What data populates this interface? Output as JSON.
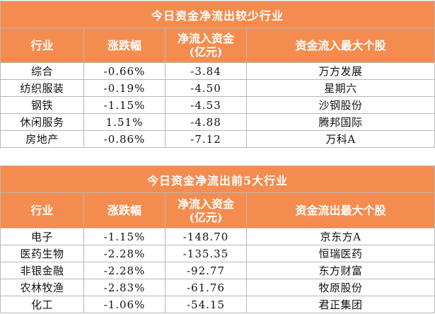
{
  "table_inflow": {
    "title": "今日资金净流出较少行业",
    "headers": {
      "industry": "行业",
      "change": "涨跌幅",
      "net_flow_line1": "净流入资金",
      "net_flow_line2": "(亿元)",
      "top_stock": "资金流入最大个股"
    },
    "rows": [
      {
        "industry": "综合",
        "change": "-0.66%",
        "net_flow": "-3.84",
        "top_stock": "万方发展"
      },
      {
        "industry": "纺织服装",
        "change": "-0.19%",
        "net_flow": "-4.50",
        "top_stock": "星期六"
      },
      {
        "industry": "钢铁",
        "change": "-1.15%",
        "net_flow": "-4.53",
        "top_stock": "沙钢股份"
      },
      {
        "industry": "休闲服务",
        "change": "1.51%",
        "net_flow": "-4.88",
        "top_stock": "腾邦国际"
      },
      {
        "industry": "房地产",
        "change": "-0.86%",
        "net_flow": "-7.12",
        "top_stock": "万科A"
      }
    ]
  },
  "table_outflow": {
    "title": "今日资金净流出前5大行业",
    "headers": {
      "industry": "行业",
      "change": "涨跌幅",
      "net_flow_line1": "净流入资金",
      "net_flow_line2": "(亿元)",
      "top_stock": "资金流出最大个股"
    },
    "rows": [
      {
        "industry": "电子",
        "change": "-1.15%",
        "net_flow": "-148.70",
        "top_stock": "京东方A"
      },
      {
        "industry": "医药生物",
        "change": "-2.28%",
        "net_flow": "-135.35",
        "top_stock": "恒瑞医药"
      },
      {
        "industry": "非银金融",
        "change": "-2.28%",
        "net_flow": "-92.77",
        "top_stock": "东方财富"
      },
      {
        "industry": "农林牧渔",
        "change": "-2.83%",
        "net_flow": "-61.76",
        "top_stock": "牧原股份"
      },
      {
        "industry": "化工",
        "change": "-1.06%",
        "net_flow": "-54.15",
        "top_stock": "君正集团"
      }
    ]
  },
  "colors": {
    "header_bg": "#f58c4f",
    "header_text": "#ffffff",
    "border": "#b8b8b8"
  }
}
